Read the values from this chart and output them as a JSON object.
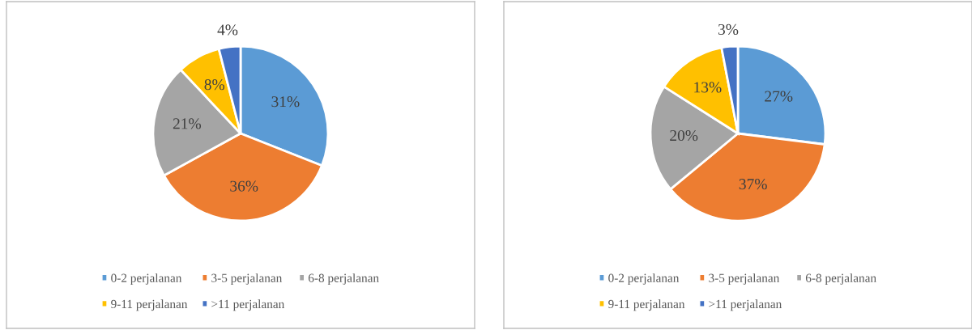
{
  "chart_data": [
    {
      "type": "pie",
      "categories": [
        "0-2 perjalanan",
        "3-5 perjalanan",
        "6-8 perjalanan",
        "9-11 perjalanan",
        ">11 perjalanan"
      ],
      "values": [
        31,
        36,
        21,
        8,
        4
      ],
      "value_labels": [
        "31%",
        "36%",
        "21%",
        "8%",
        "4%"
      ],
      "colors": [
        "#5b9bd5",
        "#ed7d31",
        "#a5a5a5",
        "#ffc000",
        "#4472c4"
      ],
      "legend": "bottom"
    },
    {
      "type": "pie",
      "categories": [
        "0-2 perjalanan",
        "3-5 perjalanan",
        "6-8 perjalanan",
        "9-11 perjalanan",
        ">11 perjalanan"
      ],
      "values": [
        27,
        37,
        20,
        13,
        3
      ],
      "value_labels": [
        "27%",
        "37%",
        "20%",
        "13%",
        "3%"
      ],
      "colors": [
        "#5b9bd5",
        "#ed7d31",
        "#a5a5a5",
        "#ffc000",
        "#4472c4"
      ],
      "legend": "bottom"
    }
  ]
}
